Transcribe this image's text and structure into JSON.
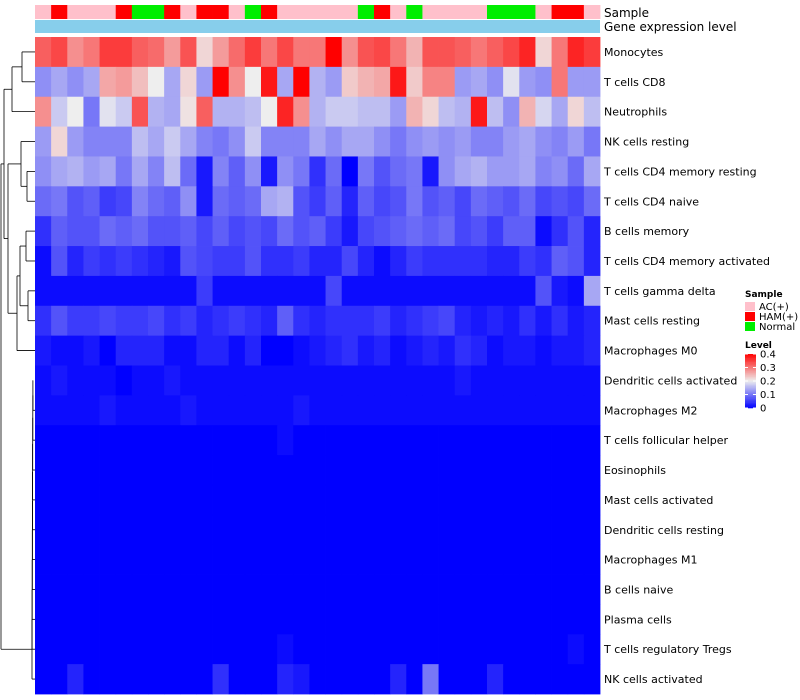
{
  "chart_data": {
    "type": "heatmap",
    "title": "",
    "annotation_titles": {
      "sample": "Sample",
      "expression": "Gene expression level"
    },
    "rows": [
      "Monocytes",
      "T cells CD8",
      "Neutrophils",
      "NK cells resting",
      "T cells CD4 memory resting",
      "T cells CD4 naive",
      "B cells memory",
      "T cells CD4 memory activated",
      "T cells gamma delta",
      "Mast cells resting",
      "Macrophages M0",
      "Dendritic cells activated",
      "Macrophages M2",
      "T cells follicular helper",
      "Eosinophils",
      "Mast cells activated",
      "Dendritic cells resting",
      "Macrophages M1",
      "B cells naive",
      "Plasma cells",
      "T cells regulatory  Tregs",
      "NK cells activated"
    ],
    "sample_groups": [
      "AC",
      "HAM",
      "AC",
      "AC",
      "AC",
      "HAM",
      "Normal",
      "Normal",
      "HAM",
      "AC",
      "HAM",
      "HAM",
      "AC",
      "Normal",
      "HAM",
      "AC",
      "AC",
      "AC",
      "AC",
      "AC",
      "Normal",
      "HAM",
      "AC",
      "Normal",
      "AC",
      "AC",
      "AC",
      "AC",
      "Normal",
      "Normal",
      "Normal",
      "AC",
      "HAM",
      "HAM",
      "AC"
    ],
    "values": [
      [
        0.32,
        0.34,
        0.28,
        0.3,
        0.35,
        0.35,
        0.32,
        0.31,
        0.27,
        0.33,
        0.22,
        0.27,
        0.31,
        0.35,
        0.3,
        0.34,
        0.3,
        0.3,
        0.4,
        0.28,
        0.33,
        0.34,
        0.3,
        0.25,
        0.33,
        0.33,
        0.32,
        0.3,
        0.32,
        0.34,
        0.37,
        0.22,
        0.3,
        0.37,
        0.35
      ],
      [
        0.12,
        0.14,
        0.12,
        0.14,
        0.26,
        0.27,
        0.24,
        0.2,
        0.14,
        0.22,
        0.13,
        0.4,
        0.28,
        0.2,
        0.38,
        0.14,
        0.4,
        0.15,
        0.13,
        0.23,
        0.25,
        0.26,
        0.38,
        0.23,
        0.29,
        0.29,
        0.13,
        0.14,
        0.12,
        0.19,
        0.13,
        0.12,
        0.3,
        0.13,
        0.13
      ],
      [
        0.28,
        0.17,
        0.2,
        0.1,
        0.19,
        0.17,
        0.33,
        0.15,
        0.14,
        0.21,
        0.32,
        0.15,
        0.15,
        0.16,
        0.2,
        0.37,
        0.28,
        0.15,
        0.17,
        0.17,
        0.16,
        0.16,
        0.13,
        0.25,
        0.22,
        0.16,
        0.15,
        0.38,
        0.16,
        0.12,
        0.25,
        0.18,
        0.14,
        0.22,
        0.16
      ],
      [
        0.13,
        0.22,
        0.13,
        0.11,
        0.11,
        0.11,
        0.16,
        0.14,
        0.17,
        0.14,
        0.11,
        0.1,
        0.12,
        0.17,
        0.11,
        0.11,
        0.11,
        0.14,
        0.12,
        0.14,
        0.14,
        0.12,
        0.1,
        0.12,
        0.13,
        0.12,
        0.13,
        0.11,
        0.11,
        0.13,
        0.14,
        0.12,
        0.11,
        0.13,
        0.1
      ],
      [
        0.12,
        0.14,
        0.15,
        0.13,
        0.14,
        0.1,
        0.14,
        0.11,
        0.16,
        0.09,
        0.02,
        0.11,
        0.08,
        0.12,
        0.02,
        0.12,
        0.1,
        0.04,
        0.09,
        0.0,
        0.1,
        0.07,
        0.09,
        0.1,
        0.02,
        0.12,
        0.14,
        0.15,
        0.13,
        0.13,
        0.14,
        0.11,
        0.12,
        0.09,
        0.14
      ],
      [
        0.09,
        0.1,
        0.07,
        0.08,
        0.05,
        0.06,
        0.11,
        0.09,
        0.08,
        0.12,
        0.02,
        0.09,
        0.08,
        0.09,
        0.14,
        0.15,
        0.07,
        0.05,
        0.08,
        0.03,
        0.08,
        0.06,
        0.07,
        0.1,
        0.07,
        0.08,
        0.06,
        0.09,
        0.08,
        0.07,
        0.09,
        0.06,
        0.07,
        0.06,
        0.09
      ],
      [
        0.04,
        0.08,
        0.07,
        0.07,
        0.09,
        0.08,
        0.09,
        0.07,
        0.07,
        0.08,
        0.06,
        0.08,
        0.06,
        0.07,
        0.06,
        0.09,
        0.07,
        0.08,
        0.05,
        0.02,
        0.06,
        0.07,
        0.08,
        0.09,
        0.08,
        0.09,
        0.06,
        0.07,
        0.05,
        0.08,
        0.08,
        0.01,
        0.04,
        0.07,
        0.03
      ],
      [
        0.01,
        0.07,
        0.03,
        0.05,
        0.04,
        0.05,
        0.04,
        0.03,
        0.02,
        0.07,
        0.06,
        0.05,
        0.05,
        0.07,
        0.04,
        0.04,
        0.05,
        0.03,
        0.03,
        0.06,
        0.03,
        0.01,
        0.03,
        0.05,
        0.04,
        0.04,
        0.04,
        0.04,
        0.03,
        0.03,
        0.05,
        0.04,
        0.08,
        0.07,
        0.03
      ],
      [
        0.01,
        0.01,
        0.01,
        0.01,
        0.01,
        0.01,
        0.01,
        0.01,
        0.01,
        0.01,
        0.05,
        0.01,
        0.01,
        0.01,
        0.01,
        0.01,
        0.01,
        0.01,
        0.06,
        0.01,
        0.01,
        0.01,
        0.01,
        0.01,
        0.01,
        0.01,
        0.01,
        0.01,
        0.01,
        0.01,
        0.01,
        0.07,
        0.02,
        0.01,
        0.14
      ],
      [
        0.04,
        0.07,
        0.05,
        0.05,
        0.06,
        0.05,
        0.05,
        0.06,
        0.04,
        0.05,
        0.03,
        0.04,
        0.05,
        0.04,
        0.03,
        0.08,
        0.04,
        0.03,
        0.04,
        0.04,
        0.04,
        0.05,
        0.03,
        0.04,
        0.05,
        0.06,
        0.03,
        0.02,
        0.03,
        0.02,
        0.04,
        0.02,
        0.04,
        0.02,
        0.03
      ],
      [
        0.02,
        0.01,
        0.01,
        0.02,
        0.0,
        0.03,
        0.03,
        0.03,
        0.01,
        0.01,
        0.03,
        0.03,
        0.01,
        0.03,
        0.0,
        0.0,
        0.01,
        0.02,
        0.03,
        0.04,
        0.02,
        0.03,
        0.01,
        0.02,
        0.03,
        0.02,
        0.04,
        0.03,
        0.01,
        0.02,
        0.02,
        0.01,
        0.02,
        0.02,
        0.03
      ],
      [
        0.01,
        0.02,
        0.01,
        0.01,
        0.01,
        0.0,
        0.01,
        0.01,
        0.02,
        0.01,
        0.01,
        0.01,
        0.01,
        0.01,
        0.01,
        0.01,
        0.01,
        0.01,
        0.01,
        0.01,
        0.01,
        0.01,
        0.01,
        0.01,
        0.01,
        0.01,
        0.02,
        0.01,
        0.01,
        0.01,
        0.01,
        0.01,
        0.01,
        0.01,
        0.01
      ],
      [
        0.01,
        0.01,
        0.01,
        0.01,
        0.02,
        0.01,
        0.01,
        0.01,
        0.01,
        0.02,
        0.01,
        0.01,
        0.01,
        0.01,
        0.01,
        0.01,
        0.02,
        0.01,
        0.01,
        0.01,
        0.01,
        0.01,
        0.01,
        0.01,
        0.01,
        0.01,
        0.01,
        0.01,
        0.01,
        0.01,
        0.01,
        0.01,
        0.01,
        0.01,
        0.01
      ],
      [
        0.0,
        0.0,
        0.0,
        0.0,
        0.0,
        0.0,
        0.0,
        0.0,
        0.0,
        0.0,
        0.0,
        0.0,
        0.0,
        0.0,
        0.0,
        0.01,
        0.0,
        0.0,
        0.0,
        0.0,
        0.0,
        0.0,
        0.0,
        0.0,
        0.0,
        0.0,
        0.0,
        0.0,
        0.0,
        0.0,
        0.0,
        0.0,
        0.0,
        0.0,
        0.0
      ],
      [
        0.0,
        0.0,
        0.0,
        0.0,
        0.0,
        0.0,
        0.0,
        0.0,
        0.0,
        0.0,
        0.0,
        0.0,
        0.0,
        0.0,
        0.0,
        0.0,
        0.0,
        0.0,
        0.0,
        0.0,
        0.0,
        0.0,
        0.0,
        0.0,
        0.0,
        0.0,
        0.0,
        0.0,
        0.0,
        0.0,
        0.0,
        0.0,
        0.0,
        0.0,
        0.0
      ],
      [
        0.0,
        0.0,
        0.0,
        0.0,
        0.0,
        0.0,
        0.0,
        0.0,
        0.0,
        0.0,
        0.0,
        0.0,
        0.0,
        0.0,
        0.0,
        0.0,
        0.0,
        0.0,
        0.0,
        0.0,
        0.0,
        0.0,
        0.0,
        0.0,
        0.0,
        0.0,
        0.0,
        0.0,
        0.0,
        0.0,
        0.0,
        0.0,
        0.0,
        0.0,
        0.0
      ],
      [
        0.0,
        0.0,
        0.0,
        0.0,
        0.0,
        0.0,
        0.0,
        0.0,
        0.0,
        0.0,
        0.0,
        0.0,
        0.0,
        0.0,
        0.0,
        0.0,
        0.0,
        0.0,
        0.0,
        0.0,
        0.0,
        0.0,
        0.0,
        0.0,
        0.0,
        0.0,
        0.0,
        0.0,
        0.0,
        0.0,
        0.0,
        0.0,
        0.0,
        0.0,
        0.0
      ],
      [
        0.0,
        0.0,
        0.0,
        0.0,
        0.0,
        0.0,
        0.0,
        0.0,
        0.0,
        0.0,
        0.0,
        0.0,
        0.0,
        0.0,
        0.0,
        0.0,
        0.0,
        0.0,
        0.0,
        0.0,
        0.0,
        0.0,
        0.0,
        0.0,
        0.0,
        0.0,
        0.0,
        0.0,
        0.0,
        0.0,
        0.0,
        0.0,
        0.0,
        0.0,
        0.0
      ],
      [
        0.0,
        0.0,
        0.0,
        0.0,
        0.0,
        0.0,
        0.0,
        0.0,
        0.0,
        0.0,
        0.0,
        0.0,
        0.0,
        0.0,
        0.0,
        0.0,
        0.0,
        0.0,
        0.0,
        0.0,
        0.0,
        0.0,
        0.0,
        0.0,
        0.0,
        0.0,
        0.0,
        0.0,
        0.0,
        0.0,
        0.0,
        0.0,
        0.0,
        0.0,
        0.0
      ],
      [
        0.0,
        0.0,
        0.0,
        0.0,
        0.0,
        0.0,
        0.0,
        0.0,
        0.0,
        0.0,
        0.0,
        0.0,
        0.0,
        0.0,
        0.0,
        0.0,
        0.0,
        0.0,
        0.0,
        0.0,
        0.0,
        0.0,
        0.0,
        0.0,
        0.0,
        0.0,
        0.0,
        0.0,
        0.0,
        0.0,
        0.0,
        0.0,
        0.0,
        0.0,
        0.0
      ],
      [
        0.0,
        0.0,
        0.0,
        0.0,
        0.0,
        0.0,
        0.0,
        0.0,
        0.0,
        0.0,
        0.0,
        0.0,
        0.0,
        0.0,
        0.0,
        0.01,
        0.0,
        0.0,
        0.0,
        0.0,
        0.0,
        0.0,
        0.0,
        0.0,
        0.0,
        0.0,
        0.0,
        0.0,
        0.0,
        0.0,
        0.0,
        0.0,
        0.0,
        0.01,
        0.0
      ],
      [
        0.0,
        0.0,
        0.03,
        0.0,
        0.0,
        0.0,
        0.0,
        0.0,
        0.0,
        0.0,
        0.0,
        0.04,
        0.0,
        0.0,
        0.0,
        0.03,
        0.02,
        0.0,
        0.0,
        0.0,
        0.0,
        0.0,
        0.03,
        0.0,
        0.1,
        0.0,
        0.0,
        0.0,
        0.03,
        0.0,
        0.0,
        0.0,
        0.0,
        0.0,
        0.0
      ]
    ],
    "color_scale": {
      "min": 0,
      "max": 0.4,
      "stops": [
        {
          "value": 0,
          "color": "#0000ff"
        },
        {
          "value": 0.2,
          "color": "#eeeeee"
        },
        {
          "value": 0.4,
          "color": "#ff0000"
        }
      ]
    },
    "legend": {
      "sample_title": "Sample",
      "sample_entries": [
        {
          "key": "AC",
          "label": "AC(+)",
          "color": "#ffc0cb"
        },
        {
          "key": "HAM",
          "label": "HAM(+)",
          "color": "#ff0000"
        },
        {
          "key": "Normal",
          "label": "Normal",
          "color": "#00ee00"
        }
      ],
      "level_title": "Level",
      "level_ticks": [
        "0.4",
        "0.3",
        "0.2",
        "0.1",
        "0"
      ]
    },
    "expression_bar_color": "#87ceeb",
    "dendrogram": "rows clustered (hierarchical)"
  }
}
